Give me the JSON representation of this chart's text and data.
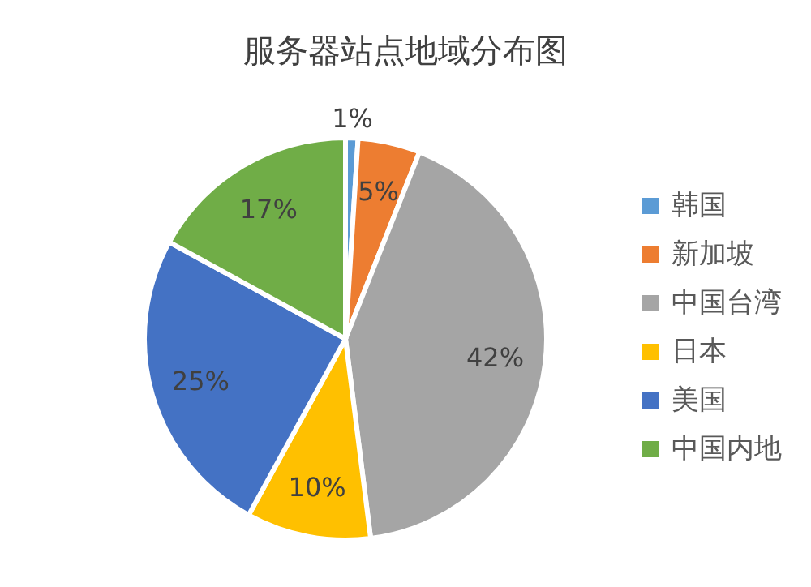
{
  "chart_data": {
    "type": "pie",
    "title": "服务器站点地域分布图",
    "categories": [
      "韩国",
      "新加坡",
      "中国台湾",
      "日本",
      "美国",
      "中国内地"
    ],
    "values": [
      1,
      5,
      42,
      10,
      25,
      17
    ],
    "colors": [
      "#5b9bd5",
      "#ed7d31",
      "#a5a5a5",
      "#ffc000",
      "#4472c4",
      "#70ad47"
    ],
    "value_labels": [
      "1%",
      "5%",
      "42%",
      "10%",
      "25%",
      "17%"
    ],
    "legend": "right"
  }
}
